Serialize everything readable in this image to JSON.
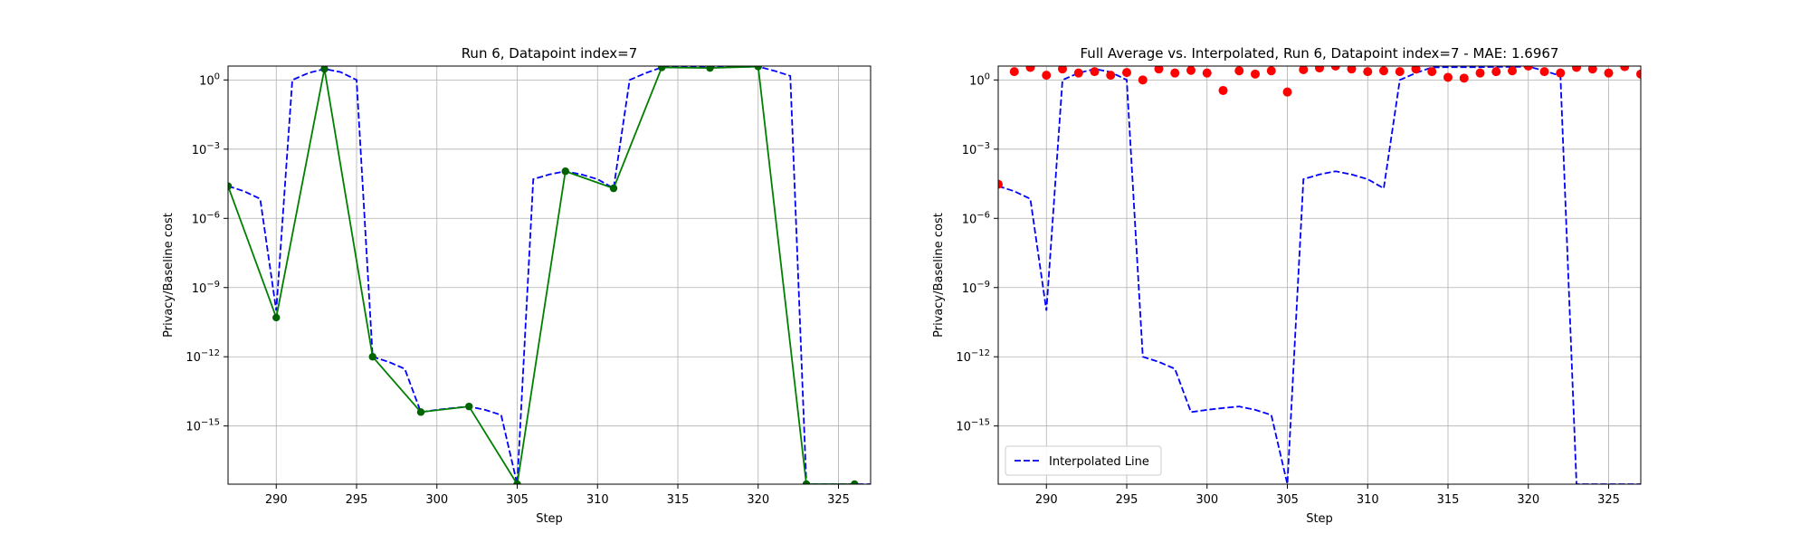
{
  "chart_data": [
    {
      "type": "line",
      "title": "Run 6, Datapoint index=7",
      "xlabel": "Step",
      "ylabel": "Privacy/Baseline cost",
      "xlim": [
        287,
        327
      ],
      "ylim": [
        3e-18,
        4
      ],
      "yscale": "log",
      "grid": true,
      "xticks": [
        290,
        295,
        300,
        305,
        310,
        315,
        320,
        325
      ],
      "ytick_labels": [
        {
          "exp": 0,
          "text": "10^0"
        },
        {
          "exp": -3,
          "text": "10^-3"
        },
        {
          "exp": -6,
          "text": "10^-6"
        },
        {
          "exp": -9,
          "text": "10^-9"
        },
        {
          "exp": -12,
          "text": "10^-12"
        },
        {
          "exp": -15,
          "text": "10^-15"
        }
      ],
      "series": [
        {
          "style": "dashed",
          "color": "#0000ff",
          "x": [
            287,
            288,
            289,
            290,
            291,
            292,
            293,
            294,
            295,
            296,
            297,
            298,
            299,
            300,
            301,
            302,
            303,
            304,
            305,
            306,
            307,
            308,
            309,
            310,
            311,
            312,
            313,
            314,
            315,
            316,
            317,
            318,
            319,
            320,
            321,
            322,
            323,
            324,
            325,
            326,
            327
          ],
          "y": [
            2.5e-05,
            1.5e-05,
            7e-06,
            1e-10,
            1.0,
            2.0,
            3.0,
            2.2,
            1.0,
            1e-12,
            6e-13,
            3e-13,
            4e-15,
            5e-15,
            6e-15,
            7e-15,
            5e-15,
            3e-15,
            3e-18,
            5e-05,
            8e-05,
            0.00011,
            8e-05,
            5e-05,
            2e-05,
            1.0,
            2.0,
            3.5,
            3.6,
            3.6,
            3.6,
            3.7,
            3.7,
            3.8,
            2.5,
            1.5,
            3e-18,
            3e-18,
            3e-18,
            3e-18,
            3e-18
          ]
        },
        {
          "style": "solid",
          "color": "#008000",
          "marker_color": "#006400",
          "x": [
            287,
            290,
            293,
            296,
            299,
            302,
            305,
            308,
            311,
            314,
            317,
            320,
            323,
            326
          ],
          "y": [
            2.5e-05,
            5e-11,
            3.0,
            1e-12,
            4e-15,
            7e-15,
            3e-18,
            0.00011,
            2e-05,
            3.5,
            3.3,
            3.8,
            3e-18,
            3e-18
          ]
        }
      ]
    },
    {
      "type": "line",
      "title": "Full Average vs. Interpolated, Run 6, Datapoint index=7 - MAE: 1.6967",
      "xlabel": "Step",
      "ylabel": "Privacy/Baseline cost",
      "xlim": [
        287,
        327
      ],
      "ylim": [
        3e-18,
        4
      ],
      "yscale": "log",
      "grid": true,
      "legend": {
        "entries": [
          "Interpolated Line"
        ],
        "placement": "lower-left"
      },
      "xticks": [
        290,
        295,
        300,
        305,
        310,
        315,
        320,
        325
      ],
      "ytick_labels": [
        {
          "exp": 0,
          "text": "10^0"
        },
        {
          "exp": -3,
          "text": "10^-3"
        },
        {
          "exp": -6,
          "text": "10^-6"
        },
        {
          "exp": -9,
          "text": "10^-9"
        },
        {
          "exp": -12,
          "text": "10^-12"
        },
        {
          "exp": -15,
          "text": "10^-15"
        }
      ],
      "series": [
        {
          "name": "Interpolated Line",
          "style": "dashed",
          "color": "#0000ff",
          "x": [
            287,
            288,
            289,
            290,
            291,
            292,
            293,
            294,
            295,
            296,
            297,
            298,
            299,
            300,
            301,
            302,
            303,
            304,
            305,
            306,
            307,
            308,
            309,
            310,
            311,
            312,
            313,
            314,
            315,
            316,
            317,
            318,
            319,
            320,
            321,
            322,
            323,
            324,
            325,
            326,
            327
          ],
          "y": [
            2.5e-05,
            1.5e-05,
            7e-06,
            1e-10,
            1.0,
            2.0,
            3.0,
            2.2,
            1.0,
            1e-12,
            6e-13,
            3e-13,
            4e-15,
            5e-15,
            6e-15,
            7e-15,
            5e-15,
            3e-15,
            3e-18,
            5e-05,
            8e-05,
            0.00011,
            8e-05,
            5e-05,
            2e-05,
            1.0,
            2.0,
            3.5,
            3.6,
            3.6,
            3.6,
            3.7,
            3.7,
            3.8,
            2.5,
            1.5,
            3e-18,
            3e-18,
            3e-18,
            3e-18,
            3e-18
          ]
        },
        {
          "style": "scatter",
          "color": "#ff0000",
          "x": [
            287,
            288,
            289,
            290,
            291,
            292,
            293,
            294,
            295,
            296,
            297,
            298,
            299,
            300,
            301,
            302,
            303,
            304,
            305,
            306,
            307,
            308,
            309,
            310,
            311,
            312,
            313,
            314,
            315,
            316,
            317,
            318,
            319,
            320,
            321,
            322,
            323,
            324,
            325,
            326,
            327
          ],
          "y": [
            3e-05,
            2.3,
            3.5,
            1.6,
            3.0,
            2.0,
            2.3,
            1.6,
            2.1,
            1.0,
            3.0,
            2.0,
            2.6,
            2.0,
            0.35,
            2.5,
            1.8,
            2.5,
            0.3,
            2.8,
            3.3,
            4.0,
            3.0,
            2.3,
            2.5,
            2.3,
            3.0,
            2.3,
            1.3,
            1.2,
            2.0,
            2.3,
            2.5,
            4.0,
            2.3,
            2.0,
            3.5,
            3.0,
            2.0,
            3.8,
            1.8
          ]
        }
      ]
    }
  ]
}
